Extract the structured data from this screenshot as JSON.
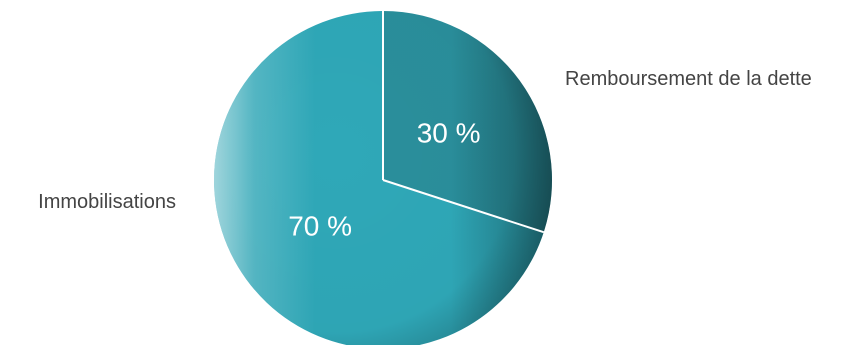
{
  "chart_data": {
    "type": "pie",
    "title": "",
    "slices": [
      {
        "label": "Remboursement de la dette",
        "value": 30,
        "value_label": "30 %",
        "color": "#2a8f9c"
      },
      {
        "label": "Immobilisations",
        "value": 70,
        "value_label": "70 %",
        "color": "#2fa8b8"
      }
    ],
    "start_angle_deg": 0,
    "direction": "clockwise",
    "legend": "none",
    "slice_border_color": "#ffffff"
  }
}
